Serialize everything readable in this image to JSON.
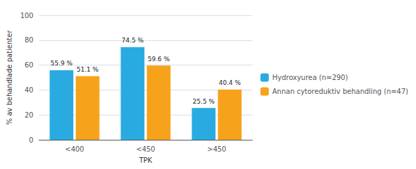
{
  "chart_data": {
    "type": "bar",
    "categories": [
      "<400",
      "<450",
      ">450"
    ],
    "series": [
      {
        "name": "Hydroxyurea (n=290)",
        "color": "#29ABE2",
        "values": [
          55.9,
          74.5,
          25.5
        ],
        "value_labels": [
          "55.9 %",
          "74.5 %",
          "25.5 %"
        ]
      },
      {
        "name": "Annan cytoreduktiv behandling (n=47)",
        "color": "#F7A21B",
        "values": [
          51.1,
          59.6,
          40.4
        ],
        "value_labels": [
          "51.1 %",
          "59.6 %",
          "40.4 %"
        ]
      }
    ],
    "xlabel": "TPK",
    "ylabel": "% av behandlade patienter",
    "ylim": [
      0,
      100
    ],
    "yticks": [
      0,
      20,
      40,
      60,
      80,
      100
    ],
    "grid": true,
    "legend": "right",
    "data_labels": true
  }
}
